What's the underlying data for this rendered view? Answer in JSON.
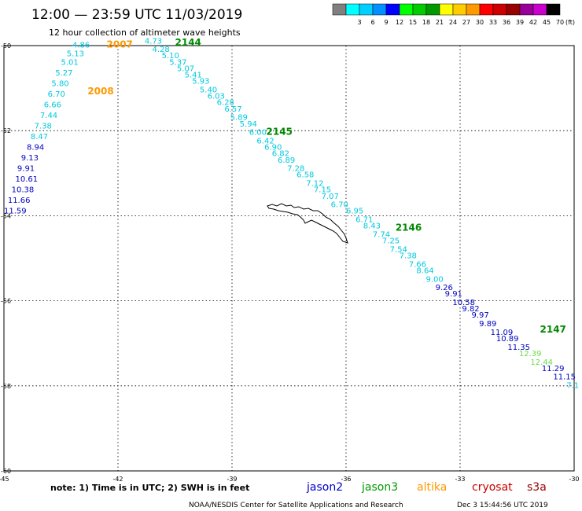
{
  "header": {
    "title": "12:00 — 23:59 UTC 11/03/2019",
    "subtitle": "12 hour collection of altimeter wave heights"
  },
  "legend": {
    "unit_label": "(ft)",
    "bins": [
      {
        "label": "",
        "color": "#808080"
      },
      {
        "label": "3",
        "color": "#00ffff"
      },
      {
        "label": "6",
        "color": "#00d0ff"
      },
      {
        "label": "9",
        "color": "#0090ff"
      },
      {
        "label": "12",
        "color": "#0000ff"
      },
      {
        "label": "15",
        "color": "#00ff00"
      },
      {
        "label": "18",
        "color": "#00cc00"
      },
      {
        "label": "21",
        "color": "#009900"
      },
      {
        "label": "24",
        "color": "#ffff00"
      },
      {
        "label": "27",
        "color": "#ffcc00"
      },
      {
        "label": "30",
        "color": "#ff9900"
      },
      {
        "label": "33",
        "color": "#ff0000"
      },
      {
        "label": "36",
        "color": "#cc0000"
      },
      {
        "label": "39",
        "color": "#990000"
      },
      {
        "label": "42",
        "color": "#990099"
      },
      {
        "label": "45",
        "color": "#cc00cc"
      },
      {
        "label": "70",
        "color": "#000000"
      }
    ]
  },
  "footer": {
    "note": "note:  1) Time is in UTC;  2) SWH is in feet",
    "missions": [
      {
        "name": "jason2",
        "color": "#0000cc"
      },
      {
        "name": "jason3",
        "color": "#009900"
      },
      {
        "name": "altika",
        "color": "#ff9900"
      },
      {
        "name": "cryosat",
        "color": "#cc0000"
      },
      {
        "name": "s3a",
        "color": "#990000"
      }
    ],
    "credit": "NOAA/NESDIS Center for Satellite Applications and Research",
    "timestamp": "Dec  3 15:44:56 UTC 2019"
  },
  "chart_data": {
    "type": "scatter",
    "xlim": [
      -45,
      -30
    ],
    "ylim": [
      -60,
      -50
    ],
    "xticks": [
      {
        "v": -45,
        "label": "-45"
      },
      {
        "v": -42,
        "label": "-42"
      },
      {
        "v": -39,
        "label": "-39"
      },
      {
        "v": -36,
        "label": "-36"
      },
      {
        "v": -33,
        "label": "-33"
      },
      {
        "v": -30,
        "label": "-30"
      }
    ],
    "yticks": [
      {
        "v": -50,
        "label": "-50"
      },
      {
        "v": -52,
        "label": "-52"
      },
      {
        "v": -54,
        "label": "-54"
      },
      {
        "v": -56,
        "label": "-56"
      },
      {
        "v": -58,
        "label": "-58"
      },
      {
        "v": -60,
        "label": "-60"
      }
    ],
    "colors": {
      "cyan": "#00c8e0",
      "blue": "#0000c0",
      "green": "#66dd44",
      "orange": "#ff9900",
      "darkgreen": "#008800"
    },
    "pass_labels": [
      {
        "text": "2007",
        "lon": -42.3,
        "lat": -50.05,
        "color": "orange"
      },
      {
        "text": "2008",
        "lon": -42.8,
        "lat": -51.15,
        "color": "orange"
      },
      {
        "text": "2144",
        "lon": -40.5,
        "lat": -50.0,
        "color": "darkgreen"
      },
      {
        "text": "2145",
        "lon": -38.1,
        "lat": -52.1,
        "color": "darkgreen"
      },
      {
        "text": "2146",
        "lon": -34.7,
        "lat": -54.35,
        "color": "darkgreen"
      },
      {
        "text": "2147",
        "lon": -30.9,
        "lat": -56.75,
        "color": "darkgreen"
      }
    ],
    "series": [
      {
        "name": "2007/2008",
        "points": [
          {
            "lon": -43.2,
            "lat": -50.05,
            "v": "4.86",
            "c": "cyan"
          },
          {
            "lon": -43.35,
            "lat": -50.25,
            "v": "5.13",
            "c": "cyan"
          },
          {
            "lon": -43.5,
            "lat": -50.45,
            "v": "5.01",
            "c": "cyan"
          },
          {
            "lon": -43.65,
            "lat": -50.7,
            "v": "5.27",
            "c": "cyan"
          },
          {
            "lon": -43.75,
            "lat": -50.95,
            "v": "5.80",
            "c": "cyan"
          },
          {
            "lon": -43.85,
            "lat": -51.2,
            "v": "6.70",
            "c": "cyan"
          },
          {
            "lon": -43.95,
            "lat": -51.45,
            "v": "6.66",
            "c": "cyan"
          },
          {
            "lon": -44.05,
            "lat": -51.7,
            "v": "7.44",
            "c": "cyan"
          },
          {
            "lon": -44.2,
            "lat": -51.95,
            "v": "7.38",
            "c": "cyan"
          },
          {
            "lon": -44.3,
            "lat": -52.2,
            "v": "8.47",
            "c": "cyan"
          },
          {
            "lon": -44.4,
            "lat": -52.45,
            "v": "8.94",
            "c": "blue"
          },
          {
            "lon": -44.55,
            "lat": -52.7,
            "v": "9.13",
            "c": "blue"
          },
          {
            "lon": -44.65,
            "lat": -52.95,
            "v": "9.91",
            "c": "blue"
          },
          {
            "lon": -44.7,
            "lat": -53.2,
            "v": "10.61",
            "c": "blue"
          },
          {
            "lon": -44.8,
            "lat": -53.45,
            "v": "10.38",
            "c": "blue"
          },
          {
            "lon": -44.9,
            "lat": -53.7,
            "v": "11.66",
            "c": "blue"
          },
          {
            "lon": -45.0,
            "lat": -53.95,
            "v": "11.59",
            "c": "blue"
          }
        ]
      },
      {
        "name": "2144-2147",
        "points": [
          {
            "lon": -41.3,
            "lat": -49.95,
            "v": "4.73",
            "c": "cyan"
          },
          {
            "lon": -41.1,
            "lat": -50.15,
            "v": "4.28",
            "c": "cyan"
          },
          {
            "lon": -40.85,
            "lat": -50.3,
            "v": "5.10",
            "c": "cyan"
          },
          {
            "lon": -40.65,
            "lat": -50.45,
            "v": "5.37",
            "c": "cyan"
          },
          {
            "lon": -40.45,
            "lat": -50.6,
            "v": "5.07",
            "c": "cyan"
          },
          {
            "lon": -40.25,
            "lat": -50.75,
            "v": "5.41",
            "c": "cyan"
          },
          {
            "lon": -40.05,
            "lat": -50.9,
            "v": "5.93",
            "c": "cyan"
          },
          {
            "lon": -39.85,
            "lat": -51.1,
            "v": "5.40",
            "c": "cyan"
          },
          {
            "lon": -39.65,
            "lat": -51.25,
            "v": "6.03",
            "c": "cyan"
          },
          {
            "lon": -39.4,
            "lat": -51.4,
            "v": "6.28",
            "c": "cyan"
          },
          {
            "lon": -39.2,
            "lat": -51.55,
            "v": "6.57",
            "c": "cyan"
          },
          {
            "lon": -39.05,
            "lat": -51.75,
            "v": "5.89",
            "c": "cyan"
          },
          {
            "lon": -38.8,
            "lat": -51.9,
            "v": "5.94",
            "c": "cyan"
          },
          {
            "lon": -38.55,
            "lat": -52.1,
            "v": "6.00",
            "c": "cyan"
          },
          {
            "lon": -38.35,
            "lat": -52.3,
            "v": "6.42",
            "c": "cyan"
          },
          {
            "lon": -38.15,
            "lat": -52.45,
            "v": "6.90",
            "c": "cyan"
          },
          {
            "lon": -37.95,
            "lat": -52.6,
            "v": "6.82",
            "c": "cyan"
          },
          {
            "lon": -37.8,
            "lat": -52.75,
            "v": "6.89",
            "c": "cyan"
          },
          {
            "lon": -37.55,
            "lat": -52.95,
            "v": "7.28",
            "c": "cyan"
          },
          {
            "lon": -37.3,
            "lat": -53.1,
            "v": "6.58",
            "c": "cyan"
          },
          {
            "lon": -37.05,
            "lat": -53.3,
            "v": "7.12",
            "c": "cyan"
          },
          {
            "lon": -36.85,
            "lat": -53.45,
            "v": "7.15",
            "c": "cyan"
          },
          {
            "lon": -36.65,
            "lat": -53.6,
            "v": "7.07",
            "c": "cyan"
          },
          {
            "lon": -36.4,
            "lat": -53.8,
            "v": "6.70",
            "c": "cyan"
          },
          {
            "lon": -36.0,
            "lat": -53.95,
            "v": "6.95",
            "c": "cyan"
          },
          {
            "lon": -35.75,
            "lat": -54.15,
            "v": "6.71",
            "c": "cyan"
          },
          {
            "lon": -35.55,
            "lat": -54.3,
            "v": "8.43",
            "c": "cyan"
          },
          {
            "lon": -35.3,
            "lat": -54.5,
            "v": "7.74",
            "c": "cyan"
          },
          {
            "lon": -35.05,
            "lat": -54.65,
            "v": "7.25",
            "c": "cyan"
          },
          {
            "lon": -34.85,
            "lat": -54.85,
            "v": "7.54",
            "c": "cyan"
          },
          {
            "lon": -34.6,
            "lat": -55.0,
            "v": "7.38",
            "c": "cyan"
          },
          {
            "lon": -34.35,
            "lat": -55.2,
            "v": "7.66",
            "c": "cyan"
          },
          {
            "lon": -34.15,
            "lat": -55.35,
            "v": "8.64",
            "c": "cyan"
          },
          {
            "lon": -33.9,
            "lat": -55.55,
            "v": "9.00",
            "c": "cyan"
          },
          {
            "lon": -33.65,
            "lat": -55.75,
            "v": "9.26",
            "c": "blue"
          },
          {
            "lon": -33.4,
            "lat": -55.9,
            "v": "9.91",
            "c": "blue"
          },
          {
            "lon": -33.2,
            "lat": -56.1,
            "v": "10.58",
            "c": "blue"
          },
          {
            "lon": -32.95,
            "lat": -56.25,
            "v": "9.82",
            "c": "blue"
          },
          {
            "lon": -32.7,
            "lat": -56.4,
            "v": "9.97",
            "c": "blue"
          },
          {
            "lon": -32.5,
            "lat": -56.6,
            "v": "9.89",
            "c": "blue"
          },
          {
            "lon": -32.2,
            "lat": -56.8,
            "v": "11.09",
            "c": "blue"
          },
          {
            "lon": -32.05,
            "lat": -56.95,
            "v": "10.89",
            "c": "blue"
          },
          {
            "lon": -31.75,
            "lat": -57.15,
            "v": "11.35",
            "c": "blue"
          },
          {
            "lon": -31.45,
            "lat": -57.3,
            "v": "12.39",
            "c": "green"
          },
          {
            "lon": -31.15,
            "lat": -57.5,
            "v": "12.44",
            "c": "green"
          },
          {
            "lon": -30.85,
            "lat": -57.65,
            "v": "11.29",
            "c": "blue"
          },
          {
            "lon": -30.55,
            "lat": -57.85,
            "v": "11.15",
            "c": "blue"
          },
          {
            "lon": -30.2,
            "lat": -58.05,
            "v": "7.1",
            "c": "cyan"
          }
        ]
      }
    ]
  }
}
